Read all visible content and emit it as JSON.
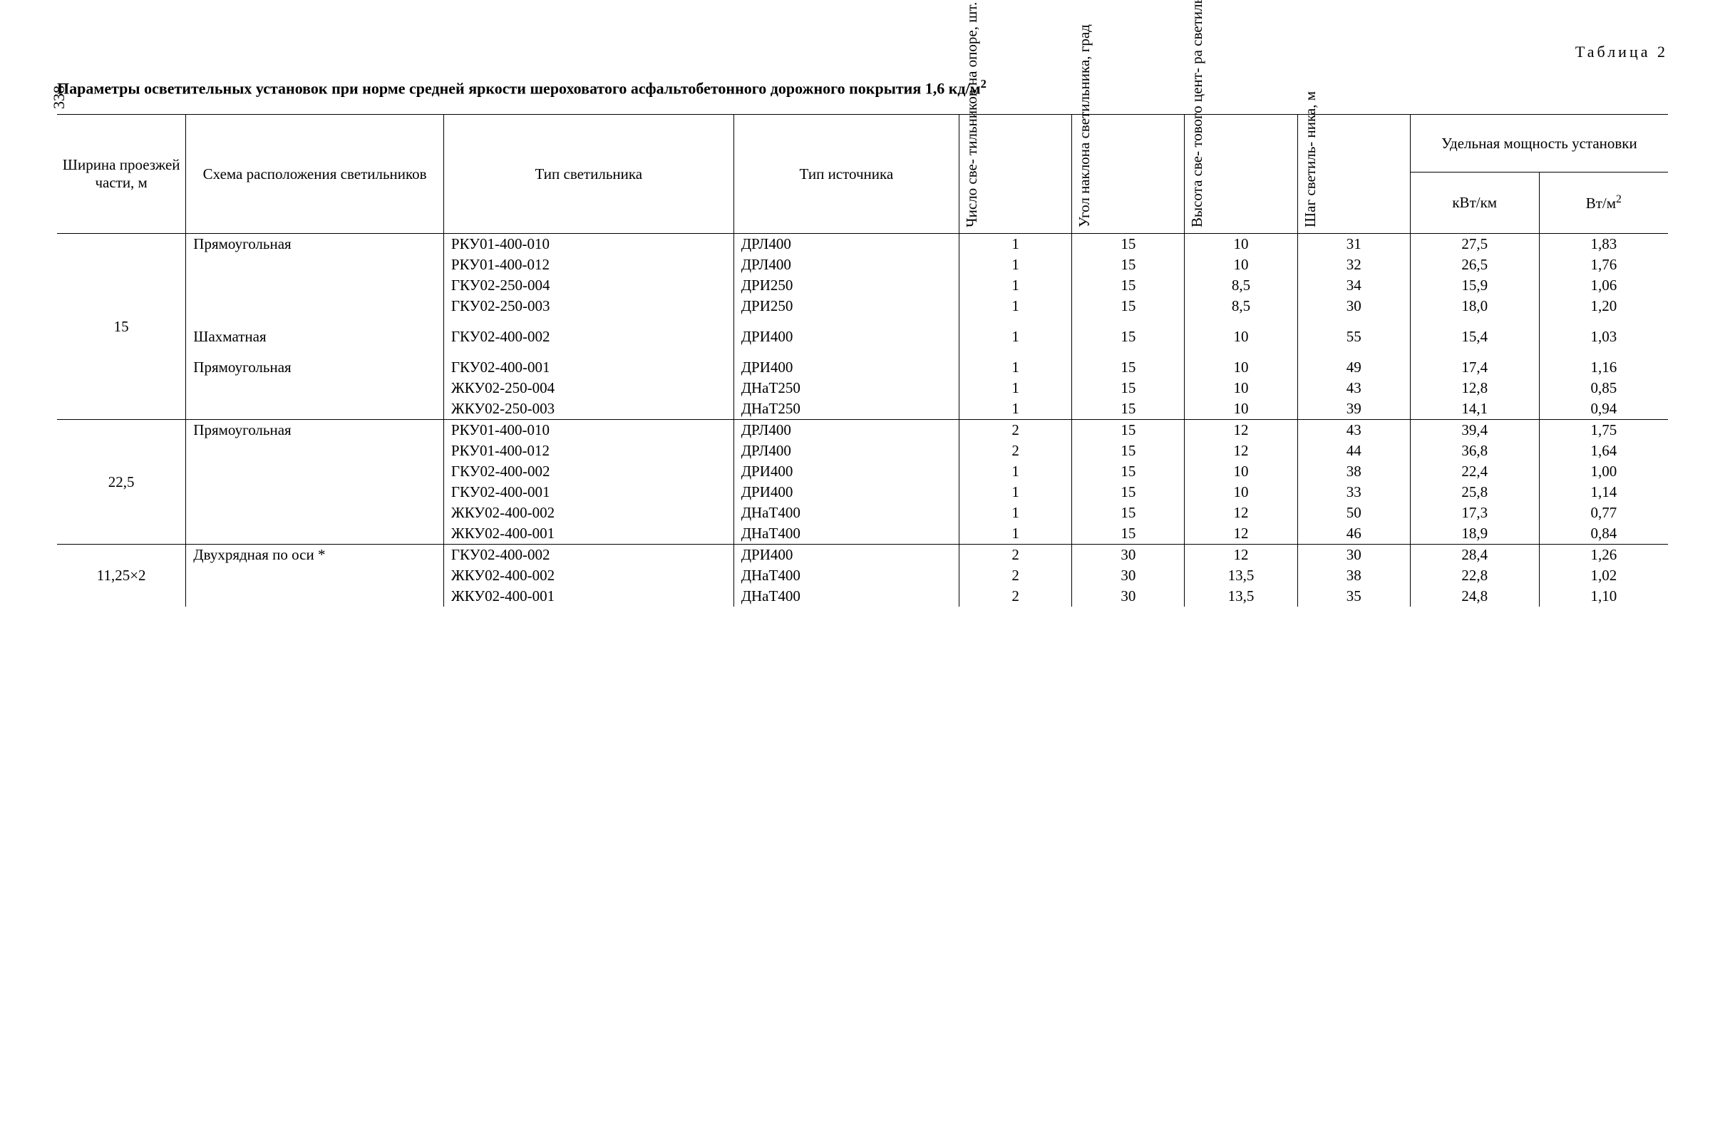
{
  "page_number": "338",
  "table_label": "Таблица 2",
  "caption_prefix": "Параметры осветительных установок при норме средней яркости шероховатого асфальтобетонного дорожного покрытия 1,6 кд/м",
  "caption_sup": "2",
  "headers": {
    "h1": "Ширина проезжей части, м",
    "h2": "Схема расположения светильников",
    "h3": "Тип светильника",
    "h4": "Тип источника",
    "h5": "Число све-\nтильников на\nопоре, шт.",
    "h6": "Угол наклона\nсветильника,\nград",
    "h7": "Высота све-\nтового цент-\nра светиль-\nников, м",
    "h8": "Шаг светиль-\nника, м",
    "h9_group": "Удельная мощность установки",
    "h9": "кВт/км",
    "h10": "Вт/м"
  },
  "groups": [
    {
      "width": "15",
      "subgroups": [
        {
          "scheme": "Прямоугольная",
          "rows": [
            {
              "c3": "РКУ01-400-010",
              "c4": "ДРЛ400",
              "c5": "1",
              "c6": "15",
              "c7": "10",
              "c8": "31",
              "c9": "27,5",
              "c10": "1,83"
            },
            {
              "c3": "РКУ01-400-012",
              "c4": "ДРЛ400",
              "c5": "1",
              "c6": "15",
              "c7": "10",
              "c8": "32",
              "c9": "26,5",
              "c10": "1,76"
            },
            {
              "c3": "ГКУ02-250-004",
              "c4": "ДРИ250",
              "c5": "1",
              "c6": "15",
              "c7": "8,5",
              "c8": "34",
              "c9": "15,9",
              "c10": "1,06"
            },
            {
              "c3": "ГКУ02-250-003",
              "c4": "ДРИ250",
              "c5": "1",
              "c6": "15",
              "c7": "8,5",
              "c8": "30",
              "c9": "18,0",
              "c10": "1,20"
            }
          ]
        },
        {
          "scheme": "Шахматная",
          "rows": [
            {
              "c3": "ГКУ02-400-002",
              "c4": "ДРИ400",
              "c5": "1",
              "c6": "15",
              "c7": "10",
              "c8": "55",
              "c9": "15,4",
              "c10": "1,03"
            }
          ]
        },
        {
          "scheme": "Прямоугольная",
          "rows": [
            {
              "c3": "ГКУ02-400-001",
              "c4": "ДРИ400",
              "c5": "1",
              "c6": "15",
              "c7": "10",
              "c8": "49",
              "c9": "17,4",
              "c10": "1,16"
            },
            {
              "c3": "ЖКУ02-250-004",
              "c4": "ДНаТ250",
              "c5": "1",
              "c6": "15",
              "c7": "10",
              "c8": "43",
              "c9": "12,8",
              "c10": "0,85"
            },
            {
              "c3": "ЖКУ02-250-003",
              "c4": "ДНаТ250",
              "c5": "1",
              "c6": "15",
              "c7": "10",
              "c8": "39",
              "c9": "14,1",
              "c10": "0,94"
            }
          ]
        }
      ]
    },
    {
      "width": "22,5",
      "subgroups": [
        {
          "scheme": "Прямоугольная",
          "rows": [
            {
              "c3": "РКУ01-400-010",
              "c4": "ДРЛ400",
              "c5": "2",
              "c6": "15",
              "c7": "12",
              "c8": "43",
              "c9": "39,4",
              "c10": "1,75"
            },
            {
              "c3": "РКУ01-400-012",
              "c4": "ДРЛ400",
              "c5": "2",
              "c6": "15",
              "c7": "12",
              "c8": "44",
              "c9": "36,8",
              "c10": "1,64"
            },
            {
              "c3": "ГКУ02-400-002",
              "c4": "ДРИ400",
              "c5": "1",
              "c6": "15",
              "c7": "10",
              "c8": "38",
              "c9": "22,4",
              "c10": "1,00"
            },
            {
              "c3": "ГКУ02-400-001",
              "c4": "ДРИ400",
              "c5": "1",
              "c6": "15",
              "c7": "10",
              "c8": "33",
              "c9": "25,8",
              "c10": "1,14"
            },
            {
              "c3": "ЖКУ02-400-002",
              "c4": "ДНаТ400",
              "c5": "1",
              "c6": "15",
              "c7": "12",
              "c8": "50",
              "c9": "17,3",
              "c10": "0,77"
            },
            {
              "c3": "ЖКУ02-400-001",
              "c4": "ДНаТ400",
              "c5": "1",
              "c6": "15",
              "c7": "12",
              "c8": "46",
              "c9": "18,9",
              "c10": "0,84"
            }
          ]
        }
      ]
    },
    {
      "width": "11,25×2",
      "subgroups": [
        {
          "scheme": "Двухрядная по оси *",
          "rows": [
            {
              "c3": "ГКУ02-400-002",
              "c4": "ДРИ400",
              "c5": "2",
              "c6": "30",
              "c7": "12",
              "c8": "30",
              "c9": "28,4",
              "c10": "1,26"
            },
            {
              "c3": "ЖКУ02-400-002",
              "c4": "ДНаТ400",
              "c5": "2",
              "c6": "30",
              "c7": "13,5",
              "c8": "38",
              "c9": "22,8",
              "c10": "1,02"
            },
            {
              "c3": "ЖКУ02-400-001",
              "c4": "ДНаТ400",
              "c5": "2",
              "c6": "30",
              "c7": "13,5",
              "c8": "35",
              "c9": "24,8",
              "c10": "1,10"
            }
          ]
        }
      ]
    }
  ]
}
